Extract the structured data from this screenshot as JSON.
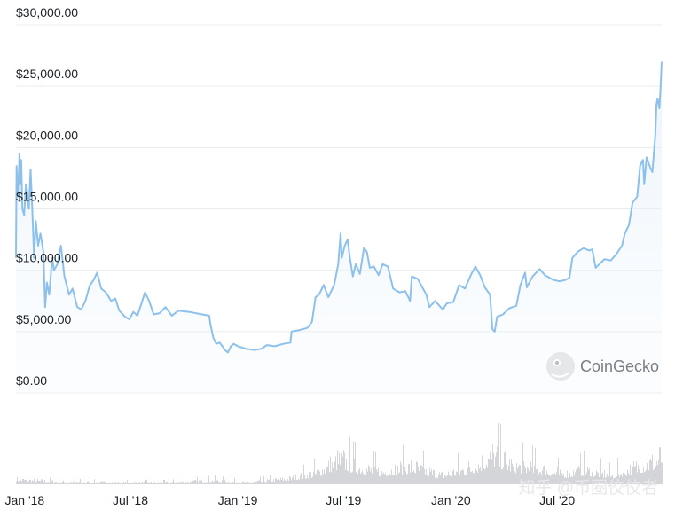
{
  "chart_data": {
    "type": "area",
    "title": "",
    "xlabel": "",
    "ylabel": "",
    "ylim": [
      0,
      30000
    ],
    "yticks": [
      {
        "value": 0,
        "label": "$0.00"
      },
      {
        "value": 5000,
        "label": "$5,000.00"
      },
      {
        "value": 10000,
        "label": "$10,000.00"
      },
      {
        "value": 15000,
        "label": "$15,000.00"
      },
      {
        "value": 20000,
        "label": "$20,000.00"
      },
      {
        "value": 25000,
        "label": "$25,000.00"
      },
      {
        "value": 30000,
        "label": "$30,000.00"
      }
    ],
    "xrange": [
      "2017-12-17",
      "2020-12-27"
    ],
    "xticks": [
      {
        "date": "2018-01-01",
        "label": "Jan '18"
      },
      {
        "date": "2018-07-01",
        "label": "Jul '18"
      },
      {
        "date": "2019-01-01",
        "label": "Jan '19"
      },
      {
        "date": "2019-07-01",
        "label": "Jul '19"
      },
      {
        "date": "2020-01-01",
        "label": "Jan '20"
      },
      {
        "date": "2020-07-01",
        "label": "Jul '20"
      }
    ],
    "grid": true,
    "line_color": "#8dc1ec",
    "volume_color": "#d3d5d9",
    "series": [
      {
        "name": "",
        "points": [
          [
            "2017-12-17",
            11000
          ],
          [
            "2017-12-18",
            18500
          ],
          [
            "2017-12-20",
            16000
          ],
          [
            "2017-12-22",
            18000
          ],
          [
            "2017-12-23",
            19500
          ],
          [
            "2017-12-24",
            17000
          ],
          [
            "2017-12-26",
            19000
          ],
          [
            "2017-12-28",
            15000
          ],
          [
            "2017-12-31",
            14500
          ],
          [
            "2018-01-03",
            17000
          ],
          [
            "2018-01-05",
            16500
          ],
          [
            "2018-01-08",
            15000
          ],
          [
            "2018-01-11",
            18200
          ],
          [
            "2018-01-14",
            15000
          ],
          [
            "2018-01-17",
            11000
          ],
          [
            "2018-01-20",
            14000
          ],
          [
            "2018-01-24",
            12000
          ],
          [
            "2018-01-28",
            13000
          ],
          [
            "2018-02-02",
            11500
          ],
          [
            "2018-02-05",
            7000
          ],
          [
            "2018-02-08",
            9000
          ],
          [
            "2018-02-12",
            8000
          ],
          [
            "2018-02-17",
            11000
          ],
          [
            "2018-02-20",
            10000
          ],
          [
            "2018-02-26",
            10500
          ],
          [
            "2018-03-04",
            12000
          ],
          [
            "2018-03-10",
            9500
          ],
          [
            "2018-03-18",
            8000
          ],
          [
            "2018-03-24",
            8500
          ],
          [
            "2018-04-01",
            7000
          ],
          [
            "2018-04-08",
            6800
          ],
          [
            "2018-04-15",
            7500
          ],
          [
            "2018-04-22",
            8700
          ],
          [
            "2018-04-29",
            9200
          ],
          [
            "2018-05-05",
            9800
          ],
          [
            "2018-05-12",
            8500
          ],
          [
            "2018-05-20",
            8200
          ],
          [
            "2018-05-29",
            7500
          ],
          [
            "2018-06-05",
            7700
          ],
          [
            "2018-06-12",
            6700
          ],
          [
            "2018-06-22",
            6200
          ],
          [
            "2018-06-29",
            6000
          ],
          [
            "2018-07-06",
            6600
          ],
          [
            "2018-07-13",
            6300
          ],
          [
            "2018-07-20",
            7300
          ],
          [
            "2018-07-26",
            8200
          ],
          [
            "2018-08-02",
            7500
          ],
          [
            "2018-08-10",
            6400
          ],
          [
            "2018-08-20",
            6500
          ],
          [
            "2018-08-30",
            7000
          ],
          [
            "2018-09-10",
            6300
          ],
          [
            "2018-09-21",
            6700
          ],
          [
            "2018-10-10",
            6600
          ],
          [
            "2018-11-01",
            6400
          ],
          [
            "2018-11-13",
            6300
          ],
          [
            "2018-11-15",
            5600
          ],
          [
            "2018-11-20",
            4500
          ],
          [
            "2018-11-25",
            4000
          ],
          [
            "2018-12-01",
            4100
          ],
          [
            "2018-12-10",
            3500
          ],
          [
            "2018-12-15",
            3300
          ],
          [
            "2018-12-20",
            3800
          ],
          [
            "2018-12-25",
            4000
          ],
          [
            "2019-01-01",
            3800
          ],
          [
            "2019-01-15",
            3600
          ],
          [
            "2019-01-30",
            3500
          ],
          [
            "2019-02-10",
            3600
          ],
          [
            "2019-02-20",
            3900
          ],
          [
            "2019-03-05",
            3800
          ],
          [
            "2019-03-20",
            4000
          ],
          [
            "2019-04-01",
            4100
          ],
          [
            "2019-04-03",
            5000
          ],
          [
            "2019-04-15",
            5100
          ],
          [
            "2019-04-30",
            5300
          ],
          [
            "2019-05-08",
            5800
          ],
          [
            "2019-05-14",
            7800
          ],
          [
            "2019-05-20",
            8000
          ],
          [
            "2019-05-28",
            8800
          ],
          [
            "2019-06-05",
            7800
          ],
          [
            "2019-06-15",
            8800
          ],
          [
            "2019-06-22",
            10500
          ],
          [
            "2019-06-26",
            13000
          ],
          [
            "2019-06-28",
            11000
          ],
          [
            "2019-07-03",
            12000
          ],
          [
            "2019-07-08",
            12500
          ],
          [
            "2019-07-12",
            11000
          ],
          [
            "2019-07-17",
            9500
          ],
          [
            "2019-07-22",
            10500
          ],
          [
            "2019-07-29",
            9700
          ],
          [
            "2019-08-05",
            11800
          ],
          [
            "2019-08-10",
            11500
          ],
          [
            "2019-08-15",
            10200
          ],
          [
            "2019-08-22",
            10300
          ],
          [
            "2019-08-30",
            9600
          ],
          [
            "2019-09-06",
            10500
          ],
          [
            "2019-09-15",
            10300
          ],
          [
            "2019-09-24",
            8500
          ],
          [
            "2019-10-05",
            8200
          ],
          [
            "2019-10-15",
            8300
          ],
          [
            "2019-10-23",
            7500
          ],
          [
            "2019-10-26",
            9500
          ],
          [
            "2019-11-05",
            9300
          ],
          [
            "2019-11-20",
            8000
          ],
          [
            "2019-11-25",
            7000
          ],
          [
            "2019-12-05",
            7500
          ],
          [
            "2019-12-18",
            6800
          ],
          [
            "2019-12-25",
            7300
          ],
          [
            "2020-01-05",
            7400
          ],
          [
            "2020-01-15",
            8800
          ],
          [
            "2020-01-25",
            8500
          ],
          [
            "2020-02-05",
            9700
          ],
          [
            "2020-02-12",
            10300
          ],
          [
            "2020-02-20",
            9600
          ],
          [
            "2020-02-28",
            8600
          ],
          [
            "2020-03-08",
            8000
          ],
          [
            "2020-03-12",
            5200
          ],
          [
            "2020-03-16",
            5000
          ],
          [
            "2020-03-20",
            6200
          ],
          [
            "2020-03-30",
            6400
          ],
          [
            "2020-04-10",
            6900
          ],
          [
            "2020-04-22",
            7100
          ],
          [
            "2020-04-29",
            8800
          ],
          [
            "2020-05-07",
            9800
          ],
          [
            "2020-05-10",
            8600
          ],
          [
            "2020-05-20",
            9500
          ],
          [
            "2020-06-01",
            10100
          ],
          [
            "2020-06-10",
            9600
          ],
          [
            "2020-06-25",
            9200
          ],
          [
            "2020-07-05",
            9100
          ],
          [
            "2020-07-15",
            9200
          ],
          [
            "2020-07-22",
            9400
          ],
          [
            "2020-07-27",
            11000
          ],
          [
            "2020-08-05",
            11500
          ],
          [
            "2020-08-15",
            11800
          ],
          [
            "2020-08-25",
            11600
          ],
          [
            "2020-08-30",
            11700
          ],
          [
            "2020-09-05",
            10200
          ],
          [
            "2020-09-20",
            10900
          ],
          [
            "2020-10-01",
            10800
          ],
          [
            "2020-10-10",
            11300
          ],
          [
            "2020-10-20",
            12000
          ],
          [
            "2020-10-25",
            13000
          ],
          [
            "2020-11-01",
            13700
          ],
          [
            "2020-11-07",
            15500
          ],
          [
            "2020-11-15",
            16000
          ],
          [
            "2020-11-20",
            18500
          ],
          [
            "2020-11-25",
            19000
          ],
          [
            "2020-11-27",
            17000
          ],
          [
            "2020-12-01",
            19200
          ],
          [
            "2020-12-08",
            18300
          ],
          [
            "2020-12-11",
            18000
          ],
          [
            "2020-12-16",
            21000
          ],
          [
            "2020-12-18",
            23500
          ],
          [
            "2020-12-20",
            24000
          ],
          [
            "2020-12-23",
            23200
          ],
          [
            "2020-12-25",
            24800
          ],
          [
            "2020-12-27",
            27000
          ]
        ]
      }
    ],
    "volume_ylim": [
      0,
      100
    ],
    "volume": [
      [
        "2017-12-17",
        8
      ],
      [
        "2018-01-15",
        6
      ],
      [
        "2018-03-01",
        4
      ],
      [
        "2018-06-01",
        3
      ],
      [
        "2018-09-01",
        3
      ],
      [
        "2018-11-20",
        6
      ],
      [
        "2019-01-15",
        3
      ],
      [
        "2019-04-01",
        9
      ],
      [
        "2019-05-15",
        18
      ],
      [
        "2019-06-26",
        40
      ],
      [
        "2019-07-15",
        30
      ],
      [
        "2019-09-01",
        20
      ],
      [
        "2019-10-26",
        28
      ],
      [
        "2019-12-15",
        14
      ],
      [
        "2020-01-15",
        22
      ],
      [
        "2020-02-15",
        30
      ],
      [
        "2020-03-12",
        46
      ],
      [
        "2020-04-15",
        30
      ],
      [
        "2020-06-01",
        24
      ],
      [
        "2020-07-15",
        16
      ],
      [
        "2020-08-15",
        22
      ],
      [
        "2020-10-01",
        14
      ],
      [
        "2020-11-15",
        28
      ],
      [
        "2020-12-15",
        36
      ],
      [
        "2020-12-27",
        46
      ]
    ]
  },
  "watermark": {
    "brand": "CoinGecko",
    "brand_icon": "gecko-logo-icon"
  },
  "credit": "知乎 @币圈佼佼者"
}
